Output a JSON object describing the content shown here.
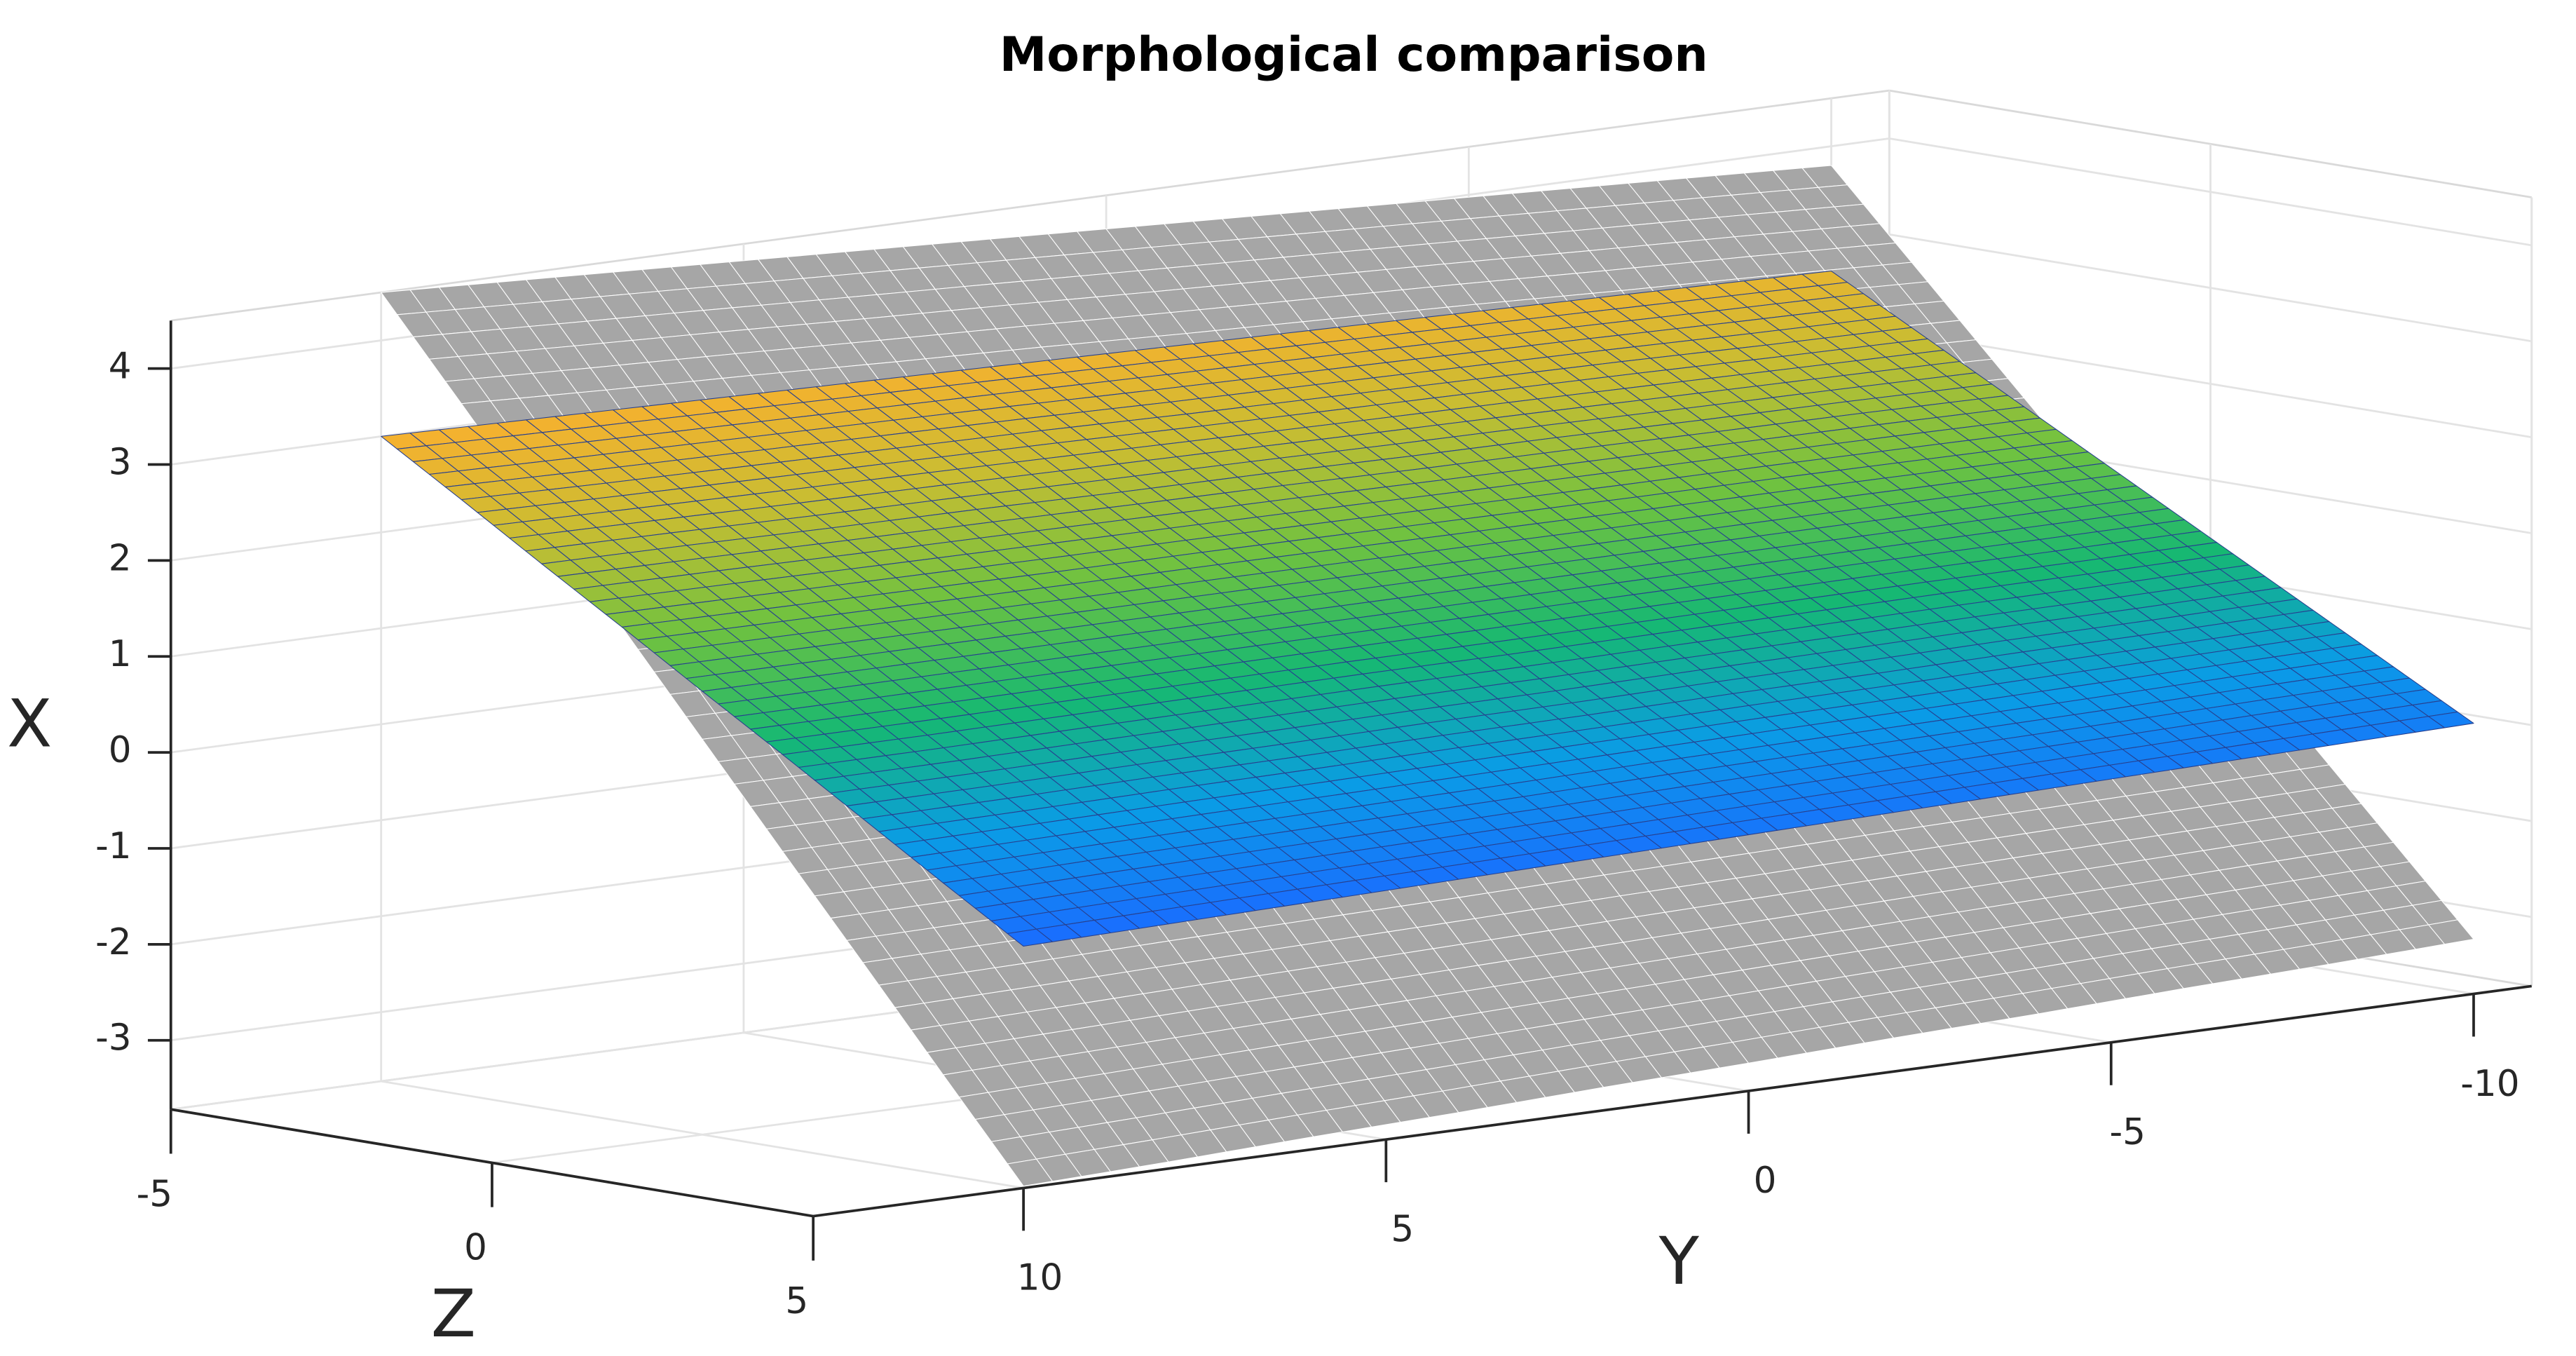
{
  "chart_data": {
    "type": "surface",
    "title": "Morphological comparison",
    "xlabel": "X",
    "ylabel": "Y",
    "zlabel": "Z",
    "xlim": [
      -3.72,
      4.5
    ],
    "xticks": [
      -3,
      -2,
      -1,
      0,
      1,
      2,
      3,
      4
    ],
    "ylim": [
      -10.8,
      12.9
    ],
    "yticks": [
      -10,
      -5,
      0,
      5,
      10
    ],
    "zlim": [
      -5,
      5
    ],
    "zticks": [
      -5,
      0,
      5
    ],
    "grid": true,
    "y": [
      10,
      8,
      6,
      4,
      2,
      0,
      -2,
      -4,
      -6,
      -8,
      -10
    ],
    "z": [
      -5,
      -3.75,
      -2.5,
      -1.25,
      0,
      1.25,
      2.5,
      3.75,
      5
    ],
    "surfaces": [
      {
        "color": "#a6a6a6",
        "edgecolor": "#ffffff",
        "values": [
          [
            4.5,
            4.43,
            4.36,
            4.29,
            4.22,
            4.15,
            4.08,
            4.01,
            3.94,
            3.87,
            3.8
          ],
          [
            3.48,
            3.42,
            3.37,
            3.31,
            3.26,
            3.2,
            3.15,
            3.1,
            3.04,
            2.99,
            2.93
          ],
          [
            2.45,
            2.41,
            2.37,
            2.33,
            2.3,
            2.26,
            2.22,
            2.18,
            2.14,
            2.1,
            2.06
          ],
          [
            1.43,
            1.4,
            1.38,
            1.36,
            1.33,
            1.31,
            1.29,
            1.26,
            1.24,
            1.22,
            1.19
          ],
          [
            0.4,
            0.39,
            0.39,
            0.38,
            0.37,
            0.36,
            0.36,
            0.35,
            0.34,
            0.33,
            0.33
          ],
          [
            -0.63,
            -0.62,
            -0.61,
            -0.6,
            -0.59,
            -0.58,
            -0.58,
            -0.57,
            -0.56,
            -0.55,
            -0.54
          ],
          [
            -1.65,
            -1.63,
            -1.6,
            -1.58,
            -1.56,
            -1.53,
            -1.51,
            -1.48,
            -1.46,
            -1.44,
            -1.41
          ],
          [
            -2.68,
            -2.64,
            -2.6,
            -2.56,
            -2.52,
            -2.48,
            -2.44,
            -2.4,
            -2.36,
            -2.32,
            -2.28
          ],
          [
            -3.7,
            -3.65,
            -3.59,
            -3.54,
            -3.48,
            -3.43,
            -3.37,
            -3.32,
            -3.26,
            -3.21,
            -3.15
          ]
        ]
      },
      {
        "colormap": [
          "#1a6cff",
          "#0a9ce6",
          "#16b873",
          "#6fc240",
          "#c9bd32",
          "#f7b12f"
        ],
        "edgecolor": "#27408f",
        "values": [
          [
            3.0,
            2.97,
            2.94,
            2.91,
            2.88,
            2.85,
            2.82,
            2.79,
            2.76,
            2.73,
            2.7
          ],
          [
            2.48,
            2.45,
            2.43,
            2.41,
            2.39,
            2.36,
            2.34,
            2.32,
            2.3,
            2.27,
            2.25
          ],
          [
            1.95,
            1.94,
            1.92,
            1.91,
            1.89,
            1.88,
            1.86,
            1.85,
            1.83,
            1.82,
            1.8
          ],
          [
            1.43,
            1.42,
            1.41,
            1.4,
            1.4,
            1.39,
            1.38,
            1.37,
            1.37,
            1.36,
            1.35
          ],
          [
            0.9,
            0.9,
            0.9,
            0.9,
            0.9,
            0.9,
            0.9,
            0.9,
            0.9,
            0.9,
            0.9
          ],
          [
            0.38,
            0.38,
            0.39,
            0.4,
            0.41,
            0.41,
            0.42,
            0.43,
            0.44,
            0.44,
            0.45
          ],
          [
            -0.15,
            -0.14,
            -0.12,
            -0.11,
            -0.09,
            -0.08,
            -0.06,
            -0.05,
            -0.03,
            -0.02,
            0
          ],
          [
            -0.68,
            -0.65,
            -0.63,
            -0.61,
            -0.59,
            -0.56,
            -0.54,
            -0.52,
            -0.5,
            -0.47,
            -0.45
          ],
          [
            -1.2,
            -1.17,
            -1.14,
            -1.11,
            -1.08,
            -1.05,
            -1.02,
            -0.99,
            -0.96,
            -0.93,
            -0.9
          ]
        ]
      }
    ]
  }
}
